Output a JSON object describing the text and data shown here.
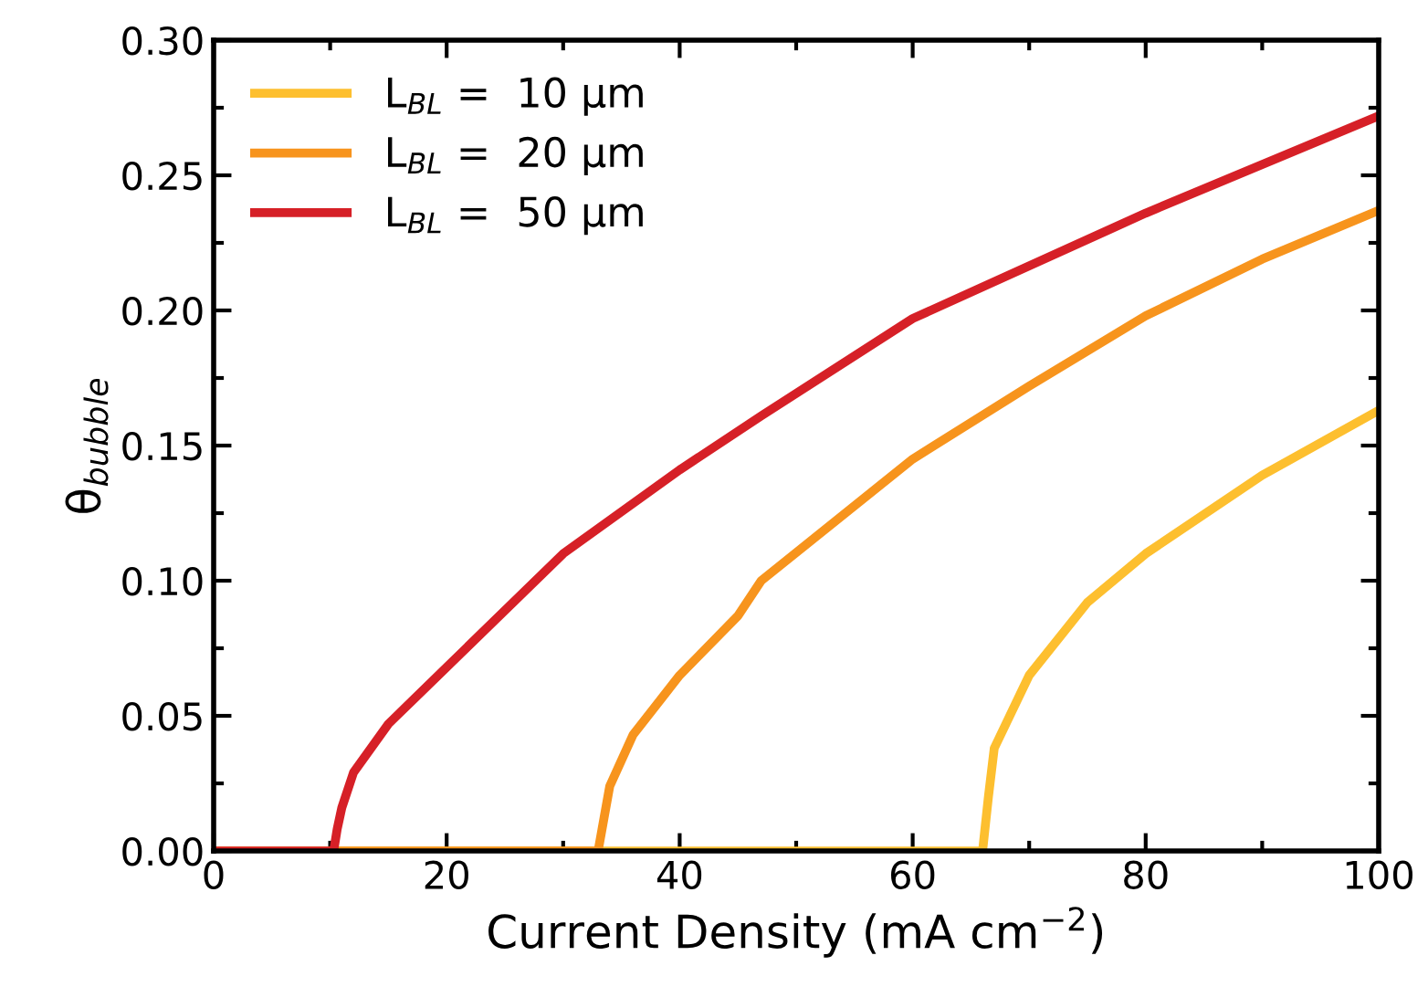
{
  "chart_data": {
    "type": "line",
    "xlabel": "Current Density (mA cm$^{−2}$)",
    "ylabel": "θ$_{bubble}$",
    "xlim": [
      0,
      100
    ],
    "ylim": [
      0,
      0.3
    ],
    "xticks": [
      0,
      {
        "value": 10,
        "label": null
      },
      20,
      {
        "value": 30,
        "label": null
      },
      40,
      {
        "value": 50,
        "label": null
      },
      60,
      {
        "value": 70,
        "label": null
      },
      80,
      {
        "value": 90,
        "label": null
      },
      100
    ],
    "yticks": [
      {
        "value": 0,
        "label": "0.00"
      },
      {
        "value": 0.025,
        "label": null
      },
      {
        "value": 0.05,
        "label": "0.05"
      },
      {
        "value": 0.075,
        "label": null
      },
      {
        "value": 0.1,
        "label": "0.10"
      },
      {
        "value": 0.125,
        "label": null
      },
      {
        "value": 0.15,
        "label": "0.15"
      },
      {
        "value": 0.175,
        "label": null
      },
      {
        "value": 0.2,
        "label": "0.20"
      },
      {
        "value": 0.225,
        "label": null
      },
      {
        "value": 0.25,
        "label": "0.25"
      },
      {
        "value": 0.275,
        "label": null
      },
      {
        "value": 0.3,
        "label": "0.30"
      }
    ],
    "grid": false,
    "legend": "top left",
    "marker": "none",
    "line_style": "solid",
    "series": [
      {
        "name": "L$_{BL}$ =  10 μm",
        "color": "#fdbf2f",
        "x": [
          0,
          66,
          66.5,
          67,
          70,
          75,
          80,
          90,
          100
        ],
        "values": [
          0,
          0,
          0.02,
          0.038,
          0.065,
          0.092,
          0.11,
          0.139,
          0.163
        ]
      },
      {
        "name": "L$_{BL}$ =  20 μm",
        "color": "#f7941d",
        "x": [
          0,
          33,
          33.5,
          34,
          36,
          40,
          45,
          47,
          60,
          70,
          80,
          90,
          100
        ],
        "values": [
          0,
          0,
          0.012,
          0.024,
          0.043,
          0.065,
          0.087,
          0.1,
          0.145,
          0.172,
          0.198,
          0.219,
          0.237
        ]
      },
      {
        "name": "L$_{BL}$ =  50 μm",
        "color": "#d62027",
        "x": [
          0,
          10.3,
          10.6,
          11,
          12,
          15,
          20,
          30,
          40,
          47,
          60,
          80,
          100
        ],
        "values": [
          0,
          0,
          0.008,
          0.016,
          0.029,
          0.047,
          0.068,
          0.11,
          0.141,
          0.161,
          0.197,
          0.236,
          0.272
        ]
      }
    ]
  }
}
